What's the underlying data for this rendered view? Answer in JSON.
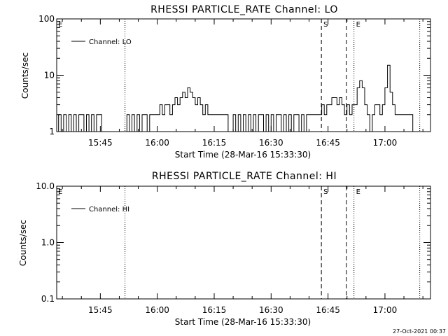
{
  "chart_data": [
    {
      "type": "line",
      "title": "RHESSI PARTICLE_RATE Channel: LO",
      "xlabel": "Start Time (28-Mar-16 15:33:30)",
      "ylabel": "Counts/sec",
      "yscale": "log",
      "ylim": [
        1,
        100
      ],
      "xlim": [
        "15:33:30",
        "17:12:00"
      ],
      "x_ticks": [
        "15:45",
        "16:00",
        "16:15",
        "16:30",
        "16:45",
        "17:00"
      ],
      "y_ticks": [
        "1",
        "10",
        "100"
      ],
      "legend": {
        "position": "top-left",
        "label": "Channel: LO"
      },
      "markers": [
        {
          "type": "dotted",
          "time": "15:51:30",
          "label": ""
        },
        {
          "type": "dashed",
          "time": "16:43:15",
          "label": "S"
        },
        {
          "type": "dashed",
          "time": "16:49:50",
          "label": ""
        },
        {
          "type": "dotted",
          "time": "16:51:50",
          "label": "E"
        },
        {
          "type": "dotted",
          "time": "17:09:10",
          "label": ""
        }
      ],
      "series": [
        {
          "name": "Channel: LO",
          "x": [
            "15:33:30",
            "15:34:00",
            "15:34:40",
            "15:35:20",
            "15:36:00",
            "15:36:40",
            "15:37:20",
            "15:38:00",
            "15:38:40",
            "15:39:20",
            "15:40:00",
            "15:40:40",
            "15:41:20",
            "15:42:00",
            "15:42:40",
            "15:43:20",
            "15:44:00",
            "15:44:40",
            "15:45:20",
            "15:46:00",
            "15:46:40",
            "15:47:20",
            "15:48:00",
            "15:48:40",
            "15:49:20",
            "15:50:00",
            "15:50:40",
            "15:51:20",
            "15:52:00",
            "15:52:40",
            "15:53:20",
            "15:54:00",
            "15:54:40",
            "15:55:20",
            "15:56:00",
            "15:56:40",
            "15:57:20",
            "15:58:00",
            "15:58:40",
            "15:59:20",
            "16:00:00",
            "16:00:40",
            "16:01:20",
            "16:02:00",
            "16:02:40",
            "16:03:20",
            "16:04:00",
            "16:04:40",
            "16:05:20",
            "16:06:00",
            "16:06:40",
            "16:07:20",
            "16:08:00",
            "16:08:40",
            "16:09:20",
            "16:10:00",
            "16:10:40",
            "16:11:20",
            "16:12:00",
            "16:12:40",
            "16:13:20",
            "16:14:00",
            "16:14:40",
            "16:15:20",
            "16:16:00",
            "16:16:40",
            "16:17:20",
            "16:18:00",
            "16:18:40",
            "16:19:20",
            "16:20:00",
            "16:20:40",
            "16:21:20",
            "16:22:00",
            "16:22:40",
            "16:23:20",
            "16:24:00",
            "16:24:40",
            "16:25:20",
            "16:26:00",
            "16:26:40",
            "16:27:20",
            "16:28:00",
            "16:28:40",
            "16:29:20",
            "16:30:00",
            "16:30:40",
            "16:31:20",
            "16:32:00",
            "16:32:40",
            "16:33:20",
            "16:34:00",
            "16:34:40",
            "16:35:20",
            "16:36:00",
            "16:36:40",
            "16:37:20",
            "16:38:00",
            "16:38:40",
            "16:39:20",
            "16:40:00",
            "16:40:40",
            "16:41:20",
            "16:42:00",
            "16:42:40",
            "16:43:20",
            "16:44:00",
            "16:44:40",
            "16:45:20",
            "16:46:00",
            "16:46:40",
            "16:47:20",
            "16:48:00",
            "16:48:40",
            "16:49:20",
            "16:50:00",
            "16:50:40",
            "16:51:20",
            "16:52:00",
            "16:52:40",
            "16:53:20",
            "16:54:00",
            "16:54:40",
            "16:55:20",
            "16:56:00",
            "16:56:40",
            "16:57:20",
            "16:58:00",
            "16:58:40",
            "16:59:20",
            "17:00:00",
            "17:00:40",
            "17:01:20",
            "17:02:00",
            "17:02:40",
            "17:03:20",
            "17:04:00",
            "17:04:40",
            "17:05:20",
            "17:06:00",
            "17:06:40",
            "17:07:20",
            "17:08:00"
          ],
          "y": [
            1,
            2,
            1,
            2,
            1,
            2,
            1,
            2,
            1,
            2,
            2,
            1,
            2,
            1,
            2,
            1,
            2,
            2,
            1,
            1,
            1,
            1,
            1,
            1,
            1,
            1,
            1,
            1,
            2,
            1,
            2,
            1,
            2,
            1,
            2,
            2,
            1,
            2,
            2,
            2,
            2,
            3,
            2,
            3,
            3,
            2,
            3,
            4,
            3,
            4,
            5,
            4,
            6,
            5,
            4,
            3,
            4,
            3,
            2,
            3,
            2,
            2,
            2,
            2,
            2,
            2,
            2,
            2,
            1,
            1,
            2,
            1,
            2,
            1,
            2,
            1,
            2,
            1,
            2,
            1,
            2,
            2,
            1,
            2,
            1,
            2,
            1,
            2,
            2,
            1,
            2,
            1,
            2,
            1,
            2,
            2,
            1,
            2,
            1,
            2,
            2,
            2,
            2,
            2,
            2,
            3,
            2,
            3,
            3,
            4,
            4,
            3,
            4,
            3,
            2,
            3,
            2,
            3,
            3,
            6,
            8,
            6,
            3,
            2,
            1,
            2,
            3,
            3,
            2,
            3,
            6,
            15,
            5,
            3,
            2,
            2,
            2,
            2,
            2,
            2,
            2,
            1,
            1
          ]
        }
      ]
    },
    {
      "type": "line",
      "title": "RHESSI PARTICLE_RATE Channel: HI",
      "xlabel": "Start Time (28-Mar-16 15:33:30)",
      "ylabel": "Counts/sec",
      "yscale": "log",
      "ylim": [
        0.1,
        10
      ],
      "xlim": [
        "15:33:30",
        "17:12:00"
      ],
      "x_ticks": [
        "15:45",
        "16:00",
        "16:15",
        "16:30",
        "16:45",
        "17:00"
      ],
      "y_ticks": [
        "0.1",
        "1.0",
        "10.0"
      ],
      "legend": {
        "position": "top-left",
        "label": "Channel: HI"
      },
      "markers": [
        {
          "type": "dotted",
          "time": "15:51:30",
          "label": ""
        },
        {
          "type": "dashed",
          "time": "16:43:15",
          "label": "S"
        },
        {
          "type": "dashed",
          "time": "16:49:50",
          "label": ""
        },
        {
          "type": "dotted",
          "time": "16:51:50",
          "label": "E"
        },
        {
          "type": "dotted",
          "time": "17:09:10",
          "label": ""
        }
      ],
      "series": [
        {
          "name": "Channel: HI",
          "x": [],
          "y": []
        }
      ]
    }
  ],
  "corner_labels": {
    "left": "E"
  },
  "timestamp": "27-Oct-2021 00:37"
}
